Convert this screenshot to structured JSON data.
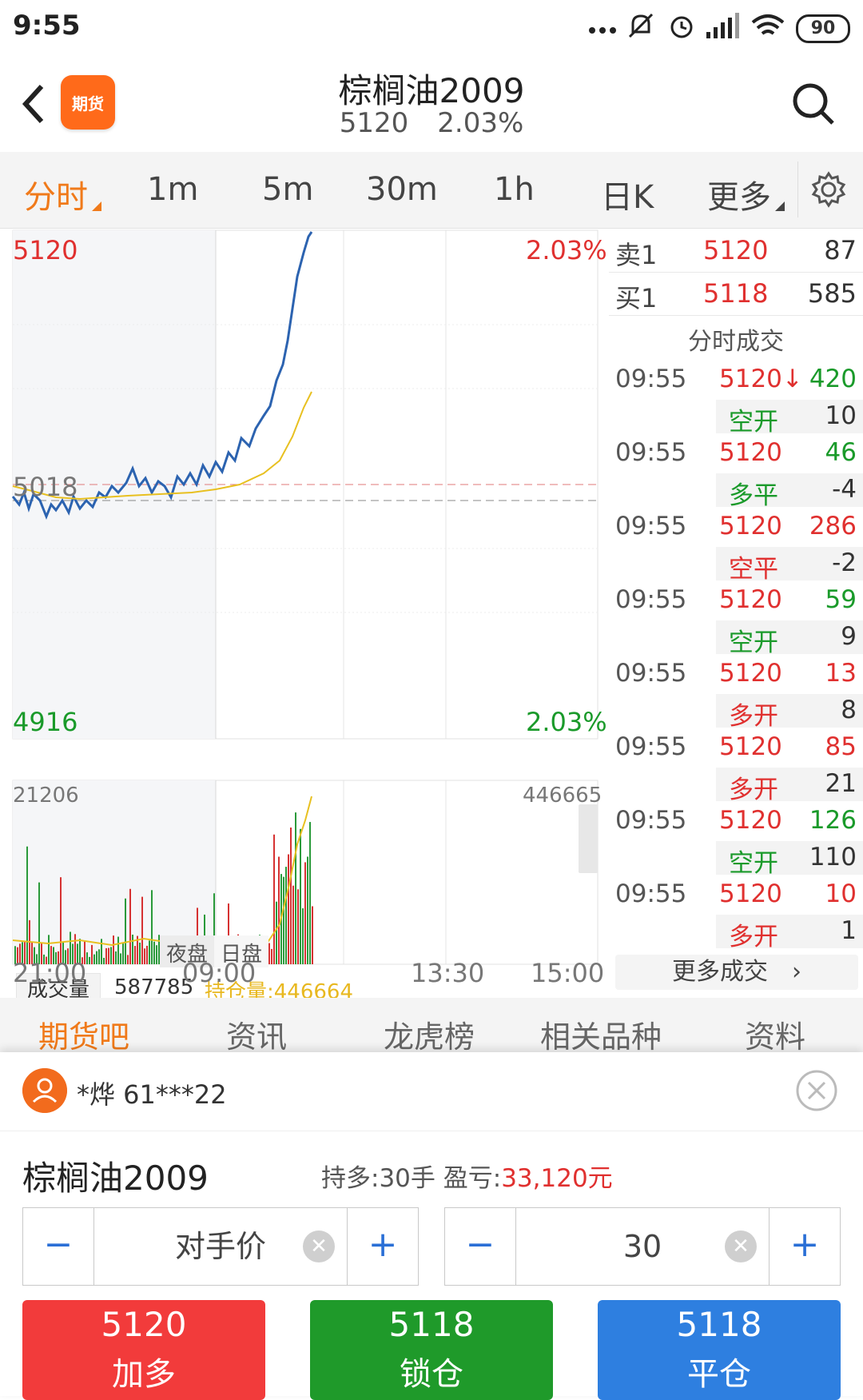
{
  "status": {
    "time": "9:55",
    "battery": "90"
  },
  "header": {
    "logo_text": "期货",
    "title": "棕榈油2009",
    "price": "5120",
    "change": "2.03%"
  },
  "tabs": [
    {
      "label": "分时",
      "active": true
    },
    {
      "label": "1m"
    },
    {
      "label": "5m"
    },
    {
      "label": "30m"
    },
    {
      "label": "1h"
    },
    {
      "label": "日K"
    },
    {
      "label": "更多"
    }
  ],
  "chart": {
    "price_high": "5120",
    "price_low": "4916",
    "pct_high": "2.03%",
    "pct_low": "2.03%",
    "ref_price": "5018",
    "session_night": "夜盘",
    "session_day": "日盘",
    "volume_label": "成交量",
    "volume_value": "587785",
    "open_interest_label": "持仓量:446664",
    "vol_max": "21206",
    "oi_max": "446665",
    "time_labels": [
      "21:00",
      "09:00",
      "13:30",
      "15:00"
    ]
  },
  "book": {
    "ask": {
      "label": "卖1",
      "price": "5120",
      "qty": "87"
    },
    "bid": {
      "label": "买1",
      "price": "5118",
      "qty": "585"
    },
    "trades_title": "分时成交",
    "trades": [
      {
        "time": "09:55",
        "price": "5120↓",
        "vol": "420",
        "vol_color": "green",
        "type": "空开",
        "type_color": "green",
        "sub": "10"
      },
      {
        "time": "09:55",
        "price": "5120",
        "vol": "46",
        "vol_color": "green",
        "type": "多平",
        "type_color": "green",
        "sub": "-4"
      },
      {
        "time": "09:55",
        "price": "5120",
        "vol": "286",
        "vol_color": "red",
        "type": "空平",
        "type_color": "red",
        "sub": "-2"
      },
      {
        "time": "09:55",
        "price": "5120",
        "vol": "59",
        "vol_color": "green",
        "type": "空开",
        "type_color": "green",
        "sub": "9"
      },
      {
        "time": "09:55",
        "price": "5120",
        "vol": "13",
        "vol_color": "red",
        "type": "多开",
        "type_color": "red",
        "sub": "8"
      },
      {
        "time": "09:55",
        "price": "5120",
        "vol": "85",
        "vol_color": "red",
        "type": "多开",
        "type_color": "red",
        "sub": "21"
      },
      {
        "time": "09:55",
        "price": "5120",
        "vol": "126",
        "vol_color": "green",
        "type": "空开",
        "type_color": "green",
        "sub": "110"
      },
      {
        "time": "09:55",
        "price": "5120",
        "vol": "10",
        "vol_color": "red",
        "type": "多开",
        "type_color": "red",
        "sub": "1"
      }
    ],
    "more_label": "更多成交"
  },
  "bottom_tabs": [
    "期货吧",
    "资讯",
    "龙虎榜",
    "相关品种",
    "资料"
  ],
  "panel": {
    "user": "*烨  61***22",
    "contract": "棕榈油2009",
    "position_label": "持多:30手  盈亏:",
    "pnl": "33,120元",
    "price_field": "对手价",
    "qty_field": "30",
    "actions": [
      {
        "price": "5120",
        "label": "加多",
        "color": "#f23b3b"
      },
      {
        "price": "5118",
        "label": "锁仓",
        "color": "#1f9a2a"
      },
      {
        "price": "5118",
        "label": "平仓",
        "color": "#2e7fe0"
      }
    ]
  },
  "colors": {
    "accent": "#f07a1a",
    "up": "#e0302f",
    "down": "#1a9a2a",
    "price_line": "#2c63b0",
    "avg_line": "#e8c020"
  }
}
